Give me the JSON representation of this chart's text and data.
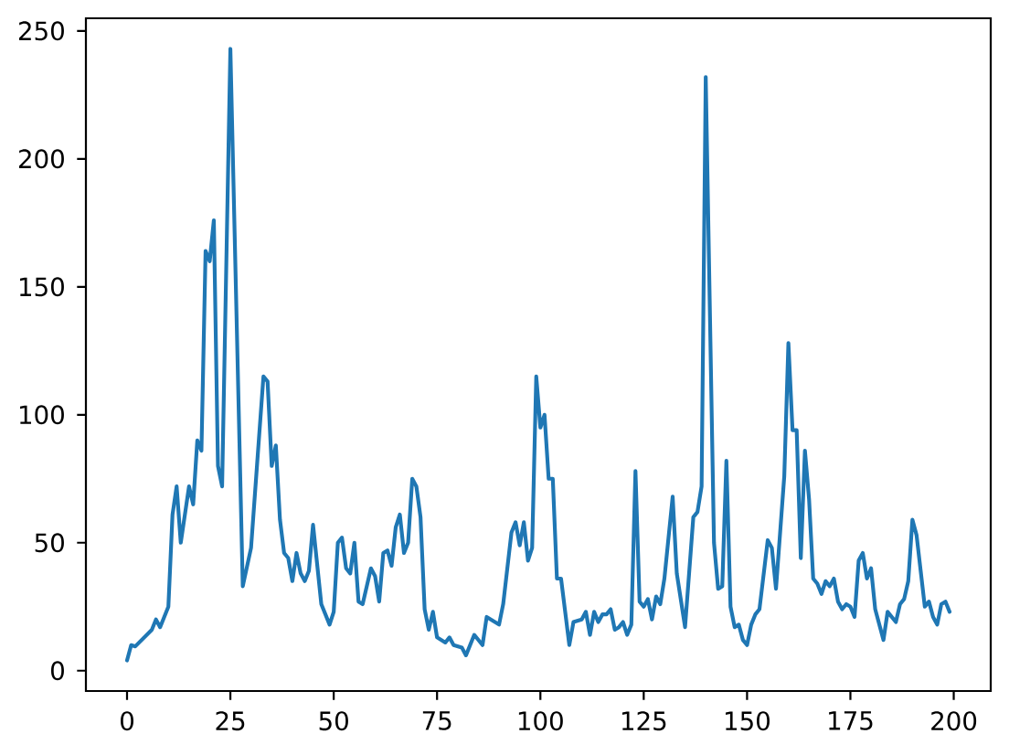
{
  "chart_data": {
    "type": "line",
    "x": [
      0,
      1,
      2,
      6,
      7,
      8,
      10,
      11,
      12,
      13,
      15,
      16,
      17,
      18,
      19,
      20,
      21,
      22,
      23,
      25,
      28,
      30,
      33,
      34,
      35,
      36,
      37,
      38,
      39,
      40,
      41,
      42,
      43,
      44,
      45,
      47,
      49,
      50,
      51,
      52,
      53,
      54,
      55,
      56,
      57,
      59,
      60,
      61,
      62,
      63,
      64,
      65,
      66,
      67,
      68,
      69,
      70,
      71,
      72,
      73,
      74,
      75,
      76,
      77,
      78,
      79,
      81,
      82,
      84,
      86,
      87,
      89,
      90,
      91,
      93,
      94,
      95,
      96,
      97,
      98,
      99,
      100,
      101,
      102,
      103,
      104,
      105,
      107,
      108,
      110,
      111,
      112,
      113,
      114,
      115,
      116,
      117,
      118,
      119,
      120,
      121,
      122,
      123,
      124,
      125,
      126,
      127,
      128,
      129,
      130,
      132,
      133,
      135,
      137,
      138,
      139,
      140,
      142,
      143,
      144,
      145,
      146,
      147,
      148,
      149,
      150,
      151,
      152,
      153,
      155,
      156,
      157,
      159,
      160,
      161,
      162,
      163,
      164,
      165,
      166,
      167,
      168,
      169,
      170,
      171,
      172,
      173,
      174,
      175,
      176,
      177,
      178,
      179,
      180,
      181,
      183,
      184,
      186,
      187,
      188,
      189,
      190,
      191,
      192,
      193,
      194,
      195,
      196,
      197,
      198,
      199
    ],
    "series": [
      {
        "color": "#1f77b4",
        "values": [
          4,
          10,
          9.5,
          16,
          20,
          17,
          25,
          61,
          72,
          50,
          72,
          65,
          90,
          86,
          164,
          160,
          176,
          80,
          72,
          243,
          33,
          48,
          115,
          113,
          80,
          88,
          59,
          46,
          44,
          35,
          46,
          38,
          35,
          39,
          57,
          26,
          18,
          23,
          50,
          52,
          40,
          38,
          50,
          27,
          26,
          40,
          37,
          27,
          46,
          47,
          41,
          56,
          61,
          46,
          50,
          75,
          72,
          60,
          24,
          16,
          23,
          13,
          12,
          11,
          13,
          10,
          9,
          6,
          14,
          10,
          21,
          19,
          18,
          26,
          54,
          58,
          49,
          58,
          43,
          48,
          115,
          95,
          100,
          75,
          75,
          36,
          36,
          10,
          19,
          20,
          23,
          14,
          23,
          19,
          22,
          22,
          24,
          16,
          17,
          19,
          14,
          18,
          78,
          27,
          25,
          28,
          20,
          29,
          26,
          36,
          68,
          38,
          17,
          60,
          62,
          72,
          232,
          50,
          32,
          33,
          82,
          25,
          17,
          18,
          12,
          10,
          18,
          22,
          24,
          51,
          48,
          32,
          76,
          128,
          94,
          94,
          44,
          86,
          67,
          36,
          34,
          30,
          35,
          33,
          36,
          27,
          24,
          26,
          25,
          21,
          43,
          46,
          36,
          40,
          24,
          12,
          23,
          19,
          26,
          28,
          35,
          59,
          53,
          39,
          25,
          27,
          21,
          18,
          26,
          27,
          23
        ]
      }
    ],
    "xlim": [
      -9.95,
      208.95
    ],
    "ylim": [
      -7.95,
      254.95
    ],
    "xticks": [
      0,
      25,
      50,
      75,
      100,
      125,
      150,
      175,
      200
    ],
    "yticks": [
      0,
      50,
      100,
      150,
      200,
      250
    ]
  }
}
